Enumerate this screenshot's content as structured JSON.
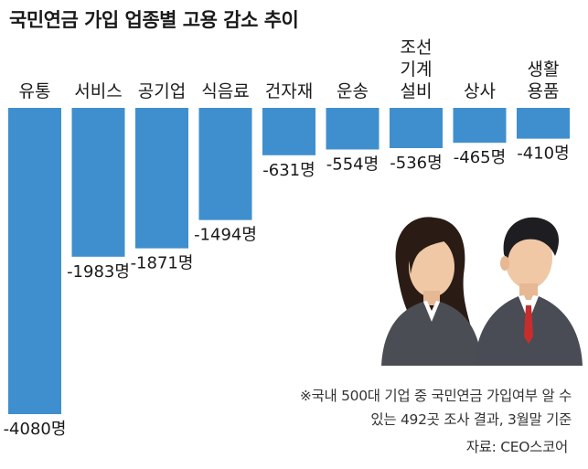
{
  "title": "국민연금 가입 업종별 고용 감소 추이",
  "chart_data": {
    "type": "bar",
    "categories": [
      [
        "유통"
      ],
      [
        "서비스"
      ],
      [
        "공기업"
      ],
      [
        "식음료"
      ],
      [
        "건자재"
      ],
      [
        "운송"
      ],
      [
        "조선",
        "기계",
        "설비"
      ],
      [
        "상사"
      ],
      [
        "생활",
        "용품"
      ]
    ],
    "values": [
      -4080,
      -1983,
      -1871,
      -1494,
      -631,
      -554,
      -536,
      -465,
      -410
    ],
    "value_labels": [
      "-4080명",
      "-1983명",
      "-1871명",
      "-1494명",
      "-631명",
      "-554명",
      "-536명",
      "-465명",
      "-410명"
    ],
    "ylim": [
      -4080,
      0
    ],
    "bar_color": "#3f8fce"
  },
  "note_line1": "※국내 500대 기업 중 국민연금 가입여부 알 수",
  "note_line2": "있는 492곳 조사 결과, 3월말 기준",
  "source": "자료: CEO스코어"
}
